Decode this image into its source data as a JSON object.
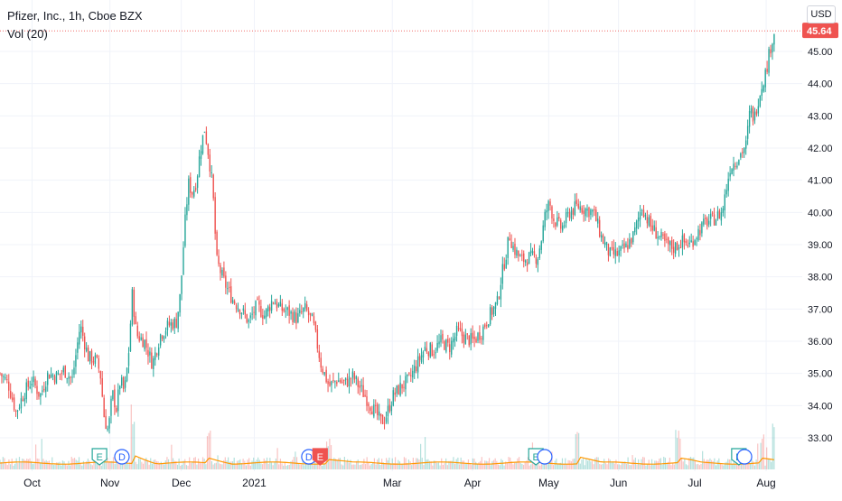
{
  "legend": {
    "symbol_line": "Pfizer, Inc., 1h, Cboe BZX",
    "volume_line": "Vol (20)"
  },
  "currency_button": "USD",
  "last_price_label": "45.64",
  "colors": {
    "up": "#26a69a",
    "down": "#ef5350",
    "grid": "#f0f3fa",
    "axis_text": "#131722",
    "volume_ma": "#ff9800",
    "last_price": "#ef5350",
    "earnings_marker": "#26a69a",
    "dividend_marker": "#2962ff",
    "split_marker_red": "#ef5350"
  },
  "chart_data": {
    "type": "candlestick",
    "title": "Pfizer, Inc., 1h, Cboe BZX",
    "ylim": [
      32.4,
      46.0
    ],
    "y_ticks": [
      "33.00",
      "34.00",
      "35.00",
      "36.00",
      "37.00",
      "38.00",
      "39.00",
      "40.00",
      "41.00",
      "42.00",
      "43.00",
      "44.00",
      "45.00"
    ],
    "x_ticks": [
      {
        "label": "Oct",
        "t": 0.04
      },
      {
        "label": "Nov",
        "t": 0.137
      },
      {
        "label": "Dec",
        "t": 0.226
      },
      {
        "label": "2021",
        "t": 0.317
      },
      {
        "label": "Mar",
        "t": 0.489
      },
      {
        "label": "Apr",
        "t": 0.589
      },
      {
        "label": "May",
        "t": 0.684
      },
      {
        "label": "Jun",
        "t": 0.771
      },
      {
        "label": "Jul",
        "t": 0.866
      },
      {
        "label": "Aug",
        "t": 0.955
      }
    ],
    "price_path": [
      [
        0.0,
        35.0
      ],
      [
        0.01,
        34.7
      ],
      [
        0.02,
        33.8
      ],
      [
        0.03,
        34.4
      ],
      [
        0.04,
        34.8
      ],
      [
        0.05,
        34.3
      ],
      [
        0.06,
        35.0
      ],
      [
        0.07,
        34.9
      ],
      [
        0.08,
        35.1
      ],
      [
        0.09,
        34.8
      ],
      [
        0.1,
        36.5
      ],
      [
        0.11,
        35.5
      ],
      [
        0.12,
        35.4
      ],
      [
        0.125,
        35.0
      ],
      [
        0.13,
        33.6
      ],
      [
        0.135,
        33.2
      ],
      [
        0.14,
        34.4
      ],
      [
        0.145,
        33.9
      ],
      [
        0.15,
        34.8
      ],
      [
        0.155,
        34.4
      ],
      [
        0.16,
        35.5
      ],
      [
        0.165,
        37.5
      ],
      [
        0.17,
        36.2
      ],
      [
        0.18,
        36.0
      ],
      [
        0.19,
        35.3
      ],
      [
        0.2,
        36.2
      ],
      [
        0.21,
        36.5
      ],
      [
        0.22,
        36.6
      ],
      [
        0.225,
        37.5
      ],
      [
        0.23,
        39.5
      ],
      [
        0.235,
        40.9
      ],
      [
        0.24,
        40.6
      ],
      [
        0.245,
        41.0
      ],
      [
        0.25,
        42.0
      ],
      [
        0.255,
        42.6
      ],
      [
        0.26,
        41.8
      ],
      [
        0.265,
        40.8
      ],
      [
        0.27,
        38.5
      ],
      [
        0.28,
        37.8
      ],
      [
        0.29,
        37.3
      ],
      [
        0.3,
        37.0
      ],
      [
        0.31,
        36.6
      ],
      [
        0.32,
        37.1
      ],
      [
        0.33,
        36.8
      ],
      [
        0.34,
        37.3
      ],
      [
        0.35,
        37.0
      ],
      [
        0.36,
        36.9
      ],
      [
        0.37,
        36.7
      ],
      [
        0.38,
        37.0
      ],
      [
        0.39,
        36.6
      ],
      [
        0.4,
        35.3
      ],
      [
        0.41,
        34.6
      ],
      [
        0.42,
        34.8
      ],
      [
        0.43,
        34.7
      ],
      [
        0.44,
        34.9
      ],
      [
        0.45,
        34.5
      ],
      [
        0.46,
        34.1
      ],
      [
        0.47,
        33.7
      ],
      [
        0.475,
        33.5
      ],
      [
        0.48,
        33.6
      ],
      [
        0.49,
        34.3
      ],
      [
        0.5,
        34.6
      ],
      [
        0.51,
        34.8
      ],
      [
        0.52,
        35.3
      ],
      [
        0.53,
        35.8
      ],
      [
        0.54,
        35.7
      ],
      [
        0.55,
        36.0
      ],
      [
        0.56,
        35.8
      ],
      [
        0.57,
        36.3
      ],
      [
        0.58,
        36.1
      ],
      [
        0.59,
        36.0
      ],
      [
        0.6,
        36.3
      ],
      [
        0.61,
        36.8
      ],
      [
        0.62,
        37.2
      ],
      [
        0.625,
        38.0
      ],
      [
        0.63,
        38.6
      ],
      [
        0.635,
        39.3
      ],
      [
        0.64,
        38.9
      ],
      [
        0.65,
        38.5
      ],
      [
        0.66,
        38.6
      ],
      [
        0.67,
        38.6
      ],
      [
        0.675,
        39.2
      ],
      [
        0.68,
        40.0
      ],
      [
        0.685,
        40.3
      ],
      [
        0.69,
        39.8
      ],
      [
        0.7,
        39.5
      ],
      [
        0.71,
        40.0
      ],
      [
        0.72,
        40.2
      ],
      [
        0.73,
        40.1
      ],
      [
        0.74,
        40.0
      ],
      [
        0.75,
        39.2
      ],
      [
        0.76,
        38.7
      ],
      [
        0.77,
        38.7
      ],
      [
        0.78,
        38.9
      ],
      [
        0.79,
        39.3
      ],
      [
        0.8,
        40.2
      ],
      [
        0.81,
        39.6
      ],
      [
        0.82,
        39.3
      ],
      [
        0.83,
        39.0
      ],
      [
        0.84,
        38.9
      ],
      [
        0.85,
        39.1
      ],
      [
        0.86,
        39.0
      ],
      [
        0.87,
        39.4
      ],
      [
        0.88,
        39.7
      ],
      [
        0.89,
        39.8
      ],
      [
        0.9,
        40.0
      ],
      [
        0.91,
        41.4
      ],
      [
        0.92,
        41.7
      ],
      [
        0.93,
        42.1
      ],
      [
        0.935,
        43.2
      ],
      [
        0.94,
        42.9
      ],
      [
        0.945,
        43.5
      ],
      [
        0.95,
        44.0
      ],
      [
        0.955,
        44.4
      ],
      [
        0.96,
        45.1
      ],
      [
        0.965,
        45.6
      ]
    ],
    "volume_spikes": [
      [
        0.165,
        1.0
      ],
      [
        0.26,
        0.55
      ],
      [
        0.41,
        0.45
      ],
      [
        0.72,
        0.8
      ],
      [
        0.845,
        0.55
      ],
      [
        0.95,
        0.5
      ],
      [
        0.965,
        0.7
      ]
    ],
    "event_markers": [
      {
        "type": "earnings",
        "label": "E",
        "t": 0.124
      },
      {
        "type": "dividend",
        "label": "D",
        "t": 0.152
      },
      {
        "type": "dividend",
        "label": "D",
        "t": 0.385
      },
      {
        "type": "earnings-red",
        "label": "E",
        "t": 0.399
      },
      {
        "type": "earnings",
        "label": "E",
        "t": 0.668
      },
      {
        "type": "dividend",
        "label": "",
        "t": 0.679
      },
      {
        "type": "earnings",
        "label": "E",
        "t": 0.921
      },
      {
        "type": "dividend",
        "label": "",
        "t": 0.928
      }
    ],
    "last_price": 45.64,
    "volume_indicator": "Vol (20)"
  }
}
